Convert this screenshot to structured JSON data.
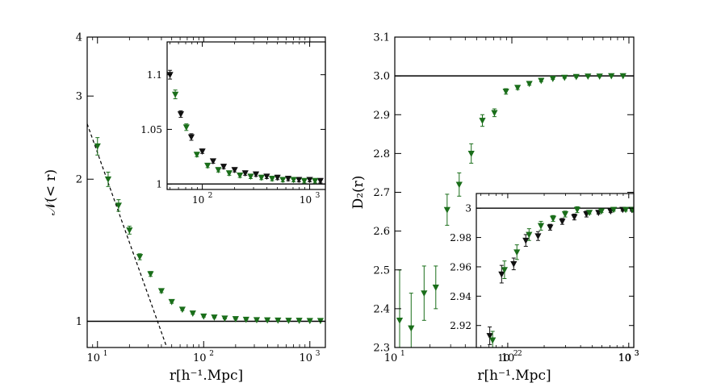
{
  "chart_data": [
    {
      "type": "scatter",
      "panel": "left-main",
      "xscale": "log",
      "yscale": "log",
      "xlim": [
        8,
        1400
      ],
      "ylim": [
        0.88,
        4
      ],
      "xlabel": "r[h⁻¹.Mpc]",
      "ylabel": "𝒩(< r)",
      "yticks": [
        {
          "value": 1,
          "label": "1"
        },
        {
          "value": 2,
          "label": "2"
        },
        {
          "value": 3,
          "label": "3"
        },
        {
          "value": 4,
          "label": "4"
        }
      ],
      "xticks": [
        {
          "value": 10,
          "base": "10",
          "exp": "1"
        },
        {
          "value": 100,
          "base": "10",
          "exp": "2"
        },
        {
          "value": 1000,
          "base": "10",
          "exp": "3"
        }
      ],
      "reference_line": {
        "y": 1
      },
      "dashed_fit": {
        "points": [
          [
            8,
            2.62
          ],
          [
            45,
            0.88
          ]
        ]
      },
      "series": [
        {
          "name": "green",
          "color": "#1a6e1a",
          "points": [
            {
              "x": 10,
              "y": 2.35,
              "err": 0.1
            },
            {
              "x": 12.6,
              "y": 2.0,
              "err": 0.07
            },
            {
              "x": 15.8,
              "y": 1.76,
              "err": 0.05
            },
            {
              "x": 20,
              "y": 1.56,
              "err": 0.03
            },
            {
              "x": 25,
              "y": 1.37,
              "err": 0.02
            },
            {
              "x": 31.6,
              "y": 1.26,
              "err": 0.015
            },
            {
              "x": 40,
              "y": 1.16,
              "err": 0.01
            },
            {
              "x": 50,
              "y": 1.1,
              "err": 0.008
            },
            {
              "x": 63,
              "y": 1.06,
              "err": 0.006
            },
            {
              "x": 79,
              "y": 1.04,
              "err": 0.005
            },
            {
              "x": 100,
              "y": 1.025,
              "err": 0.004
            },
            {
              "x": 126,
              "y": 1.02,
              "err": 0.003
            },
            {
              "x": 158,
              "y": 1.015,
              "err": 0.003
            },
            {
              "x": 200,
              "y": 1.012,
              "err": 0.002
            },
            {
              "x": 251,
              "y": 1.009,
              "err": 0.002
            },
            {
              "x": 316,
              "y": 1.007,
              "err": 0.002
            },
            {
              "x": 398,
              "y": 1.006,
              "err": 0.002
            },
            {
              "x": 501,
              "y": 1.005,
              "err": 0.002
            },
            {
              "x": 631,
              "y": 1.004,
              "err": 0.002
            },
            {
              "x": 794,
              "y": 1.004,
              "err": 0.002
            },
            {
              "x": 1000,
              "y": 1.003,
              "err": 0.002
            },
            {
              "x": 1259,
              "y": 1.003,
              "err": 0.002
            }
          ]
        }
      ]
    },
    {
      "type": "scatter",
      "panel": "left-inset",
      "xscale": "log",
      "xlim": [
        47,
        1400
      ],
      "ylim": [
        0.995,
        1.13
      ],
      "yticks": [
        {
          "value": 1.0,
          "label": "1"
        },
        {
          "value": 1.05,
          "label": "1.05"
        },
        {
          "value": 1.1,
          "label": "1.1"
        }
      ],
      "xticks": [
        {
          "value": 100,
          "base": "10",
          "exp": "2"
        },
        {
          "value": 1000,
          "base": "10",
          "exp": "3"
        }
      ],
      "reference_line": {
        "y": 1
      },
      "series": [
        {
          "name": "black",
          "color": "#111111",
          "points": [
            {
              "x": 50,
              "y": 1.1,
              "err": 0.004
            },
            {
              "x": 63,
              "y": 1.064,
              "err": 0.003
            },
            {
              "x": 79,
              "y": 1.043,
              "err": 0.003
            },
            {
              "x": 100,
              "y": 1.03,
              "err": 0.002
            },
            {
              "x": 126,
              "y": 1.021,
              "err": 0.002
            },
            {
              "x": 158,
              "y": 1.016,
              "err": 0.002
            },
            {
              "x": 200,
              "y": 1.013,
              "err": 0.002
            },
            {
              "x": 251,
              "y": 1.01,
              "err": 0.002
            },
            {
              "x": 316,
              "y": 1.009,
              "err": 0.002
            },
            {
              "x": 398,
              "y": 1.007,
              "err": 0.002
            },
            {
              "x": 501,
              "y": 1.006,
              "err": 0.002
            },
            {
              "x": 631,
              "y": 1.005,
              "err": 0.002
            },
            {
              "x": 794,
              "y": 1.004,
              "err": 0.002
            },
            {
              "x": 1000,
              "y": 1.004,
              "err": 0.002
            },
            {
              "x": 1259,
              "y": 1.003,
              "err": 0.002
            }
          ]
        },
        {
          "name": "green",
          "color": "#1a6e1a",
          "points": [
            {
              "x": 56,
              "y": 1.082,
              "err": 0.004
            },
            {
              "x": 71,
              "y": 1.052,
              "err": 0.003
            },
            {
              "x": 89,
              "y": 1.027,
              "err": 0.002
            },
            {
              "x": 112,
              "y": 1.017,
              "err": 0.002
            },
            {
              "x": 141,
              "y": 1.013,
              "err": 0.002
            },
            {
              "x": 178,
              "y": 1.01,
              "err": 0.002
            },
            {
              "x": 224,
              "y": 1.008,
              "err": 0.002
            },
            {
              "x": 282,
              "y": 1.007,
              "err": 0.002
            },
            {
              "x": 355,
              "y": 1.006,
              "err": 0.002
            },
            {
              "x": 447,
              "y": 1.005,
              "err": 0.002
            },
            {
              "x": 562,
              "y": 1.004,
              "err": 0.002
            },
            {
              "x": 708,
              "y": 1.004,
              "err": 0.002
            },
            {
              "x": 891,
              "y": 1.003,
              "err": 0.002
            },
            {
              "x": 1122,
              "y": 1.003,
              "err": 0.002
            }
          ]
        }
      ]
    },
    {
      "type": "scatter",
      "panel": "right-main",
      "xscale": "log",
      "xlim": [
        10,
        1100
      ],
      "ylim": [
        2.3,
        3.1
      ],
      "xlabel": "r[h⁻¹.Mpc]",
      "ylabel": "D₂(r)",
      "yticks": [
        {
          "value": 2.3,
          "label": "2.3"
        },
        {
          "value": 2.4,
          "label": "2.4"
        },
        {
          "value": 2.5,
          "label": "2.5"
        },
        {
          "value": 2.6,
          "label": "2.6"
        },
        {
          "value": 2.7,
          "label": "2.7"
        },
        {
          "value": 2.8,
          "label": "2.8"
        },
        {
          "value": 2.9,
          "label": "2.9"
        },
        {
          "value": 3.0,
          "label": "3.0"
        },
        {
          "value": 3.1,
          "label": "3.1"
        }
      ],
      "xticks": [
        {
          "value": 10,
          "base": "10",
          "exp": "1"
        },
        {
          "value": 100,
          "base": "10",
          "exp": "2"
        },
        {
          "value": 1000,
          "base": "10",
          "exp": "3"
        }
      ],
      "reference_line": {
        "y": 3.0
      },
      "series": [
        {
          "name": "green",
          "color": "#1a6e1a",
          "points": [
            {
              "x": 11,
              "y": 2.37,
              "err": 0.13
            },
            {
              "x": 13.8,
              "y": 2.35,
              "err": 0.09
            },
            {
              "x": 17.8,
              "y": 2.44,
              "err": 0.07
            },
            {
              "x": 22.4,
              "y": 2.455,
              "err": 0.055
            },
            {
              "x": 28,
              "y": 2.655,
              "err": 0.04
            },
            {
              "x": 35.5,
              "y": 2.72,
              "err": 0.03
            },
            {
              "x": 45,
              "y": 2.8,
              "err": 0.025
            },
            {
              "x": 56,
              "y": 2.885,
              "err": 0.015
            },
            {
              "x": 71,
              "y": 2.905,
              "err": 0.01
            },
            {
              "x": 89,
              "y": 2.96,
              "err": 0.007
            },
            {
              "x": 112,
              "y": 2.97,
              "err": 0.005
            },
            {
              "x": 141,
              "y": 2.98,
              "err": 0.004
            },
            {
              "x": 178,
              "y": 2.988,
              "err": 0.003
            },
            {
              "x": 224,
              "y": 2.993,
              "err": 0.002
            },
            {
              "x": 282,
              "y": 2.996,
              "err": 0.002
            },
            {
              "x": 355,
              "y": 2.998,
              "err": 0.002
            },
            {
              "x": 447,
              "y": 2.999,
              "err": 0.001
            },
            {
              "x": 562,
              "y": 2.999,
              "err": 0.001
            },
            {
              "x": 708,
              "y": 3.0,
              "err": 0.001
            },
            {
              "x": 891,
              "y": 3.0,
              "err": 0.001
            }
          ]
        }
      ]
    },
    {
      "type": "scatter",
      "panel": "right-inset",
      "xscale": "log",
      "xlim": [
        55,
        1100
      ],
      "ylim": [
        2.905,
        3.01
      ],
      "yticks": [
        {
          "value": 2.92,
          "label": "2.92"
        },
        {
          "value": 2.94,
          "label": "2.94"
        },
        {
          "value": 2.96,
          "label": "2.96"
        },
        {
          "value": 2.98,
          "label": "2.98"
        },
        {
          "value": 3.0,
          "label": "3"
        }
      ],
      "xticks": [
        {
          "value": 100,
          "base": "10",
          "exp": "2"
        },
        {
          "value": 1000,
          "base": "10",
          "exp": "3"
        }
      ],
      "reference_line": {
        "y": 3.0
      },
      "series": [
        {
          "name": "black",
          "color": "#111111",
          "points": [
            {
              "x": 71,
              "y": 2.913,
              "err": 0.006
            },
            {
              "x": 89,
              "y": 2.955,
              "err": 0.006
            },
            {
              "x": 112,
              "y": 2.962,
              "err": 0.004
            },
            {
              "x": 141,
              "y": 2.978,
              "err": 0.004
            },
            {
              "x": 178,
              "y": 2.981,
              "err": 0.003
            },
            {
              "x": 224,
              "y": 2.987,
              "err": 0.002
            },
            {
              "x": 282,
              "y": 2.991,
              "err": 0.002
            },
            {
              "x": 355,
              "y": 2.994,
              "err": 0.002
            },
            {
              "x": 447,
              "y": 2.996,
              "err": 0.002
            },
            {
              "x": 562,
              "y": 2.997,
              "err": 0.001
            },
            {
              "x": 708,
              "y": 2.998,
              "err": 0.001
            },
            {
              "x": 891,
              "y": 2.999,
              "err": 0.001
            },
            {
              "x": 1059,
              "y": 2.999,
              "err": 0.001
            }
          ]
        },
        {
          "name": "green",
          "color": "#1a6e1a",
          "points": [
            {
              "x": 75,
              "y": 2.91,
              "err": 0.006
            },
            {
              "x": 94,
              "y": 2.958,
              "err": 0.006
            },
            {
              "x": 119,
              "y": 2.97,
              "err": 0.005
            },
            {
              "x": 150,
              "y": 2.982,
              "err": 0.004
            },
            {
              "x": 188,
              "y": 2.988,
              "err": 0.003
            },
            {
              "x": 237,
              "y": 2.993,
              "err": 0.002
            },
            {
              "x": 298,
              "y": 2.996,
              "err": 0.002
            },
            {
              "x": 375,
              "y": 2.999,
              "err": 0.002
            },
            {
              "x": 473,
              "y": 2.997,
              "err": 0.001
            },
            {
              "x": 595,
              "y": 2.998,
              "err": 0.001
            },
            {
              "x": 750,
              "y": 2.999,
              "err": 0.001
            },
            {
              "x": 944,
              "y": 2.999,
              "err": 0.001
            },
            {
              "x": 1080,
              "y": 2.999,
              "err": 0.001
            }
          ]
        }
      ]
    }
  ]
}
